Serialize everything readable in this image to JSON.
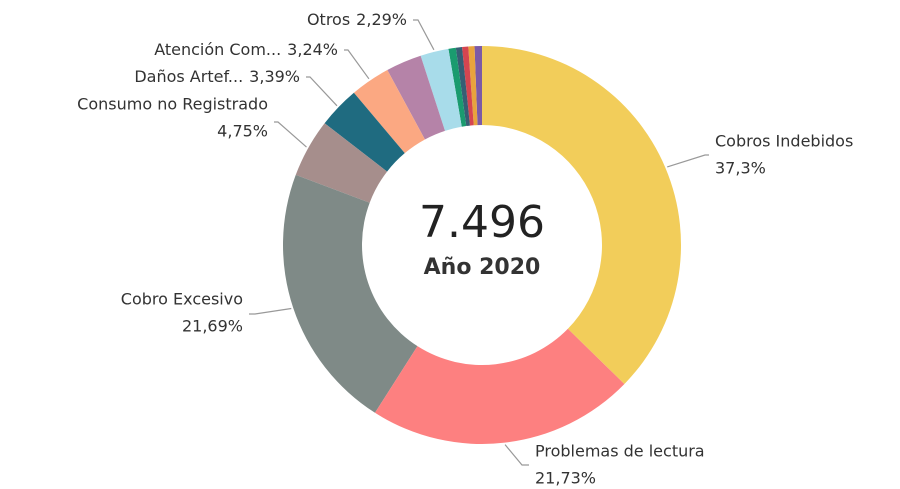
{
  "chart_data": {
    "type": "donut",
    "center_text": "7.496",
    "subtitle": "Año 2020",
    "categories": [
      "Cobros Indebidos",
      "Problemas de lectura",
      "Cobro Excesivo",
      "Consumo no Registrado",
      "Daños Artef...",
      "Atención Com...",
      null,
      "Otros",
      null,
      null,
      null,
      null,
      null
    ],
    "values": [
      37.3,
      21.73,
      21.69,
      4.75,
      3.39,
      3.24,
      2.9,
      2.29,
      0.6,
      0.5,
      0.5,
      0.5,
      0.6
    ],
    "value_labels": [
      "37,3%",
      "21,73%",
      "21,69%",
      "4,75%",
      "3,39%",
      "3,24%",
      null,
      "2,29%",
      null,
      null,
      null,
      null,
      null
    ],
    "colors": [
      "#f2cd5a",
      "#fd8080",
      "#7f8a87",
      "#a68e8c",
      "#1f6b80",
      "#fba882",
      "#b583a8",
      "#a8dcea",
      "#1a9b6f",
      "#375e74",
      "#d64550",
      "#e8a33d",
      "#7c5aa6"
    ]
  }
}
